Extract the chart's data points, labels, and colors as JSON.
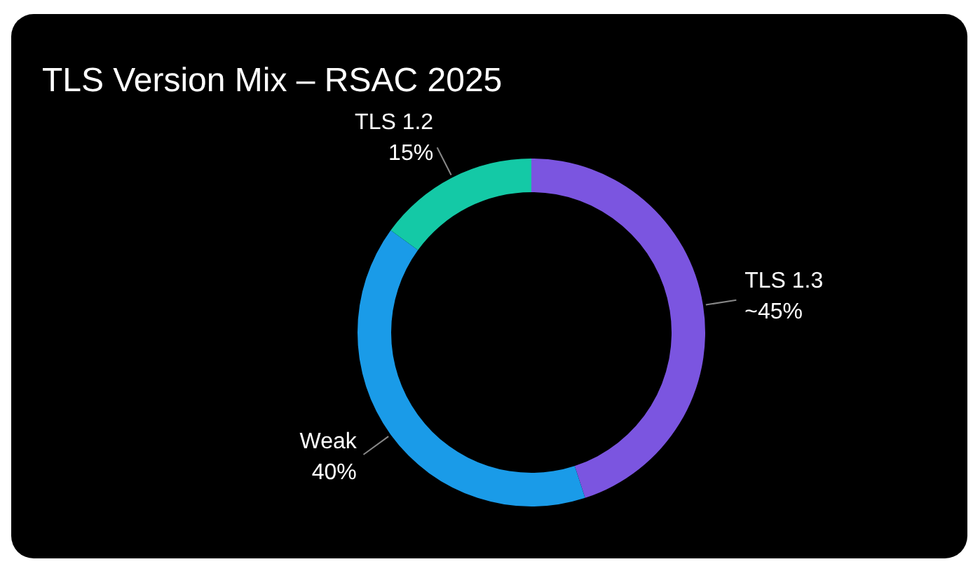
{
  "chart_data": {
    "type": "donut",
    "title": "TLS Version Mix – RSAC 2025",
    "categories": [
      "TLS 1.3",
      "Weak",
      "TLS 1.2"
    ],
    "values": [
      45,
      40,
      15
    ],
    "colors": [
      "#7b55e0",
      "#1a9be8",
      "#14c9a6"
    ],
    "value_labels": [
      "~45%",
      "40%",
      "15%"
    ]
  }
}
